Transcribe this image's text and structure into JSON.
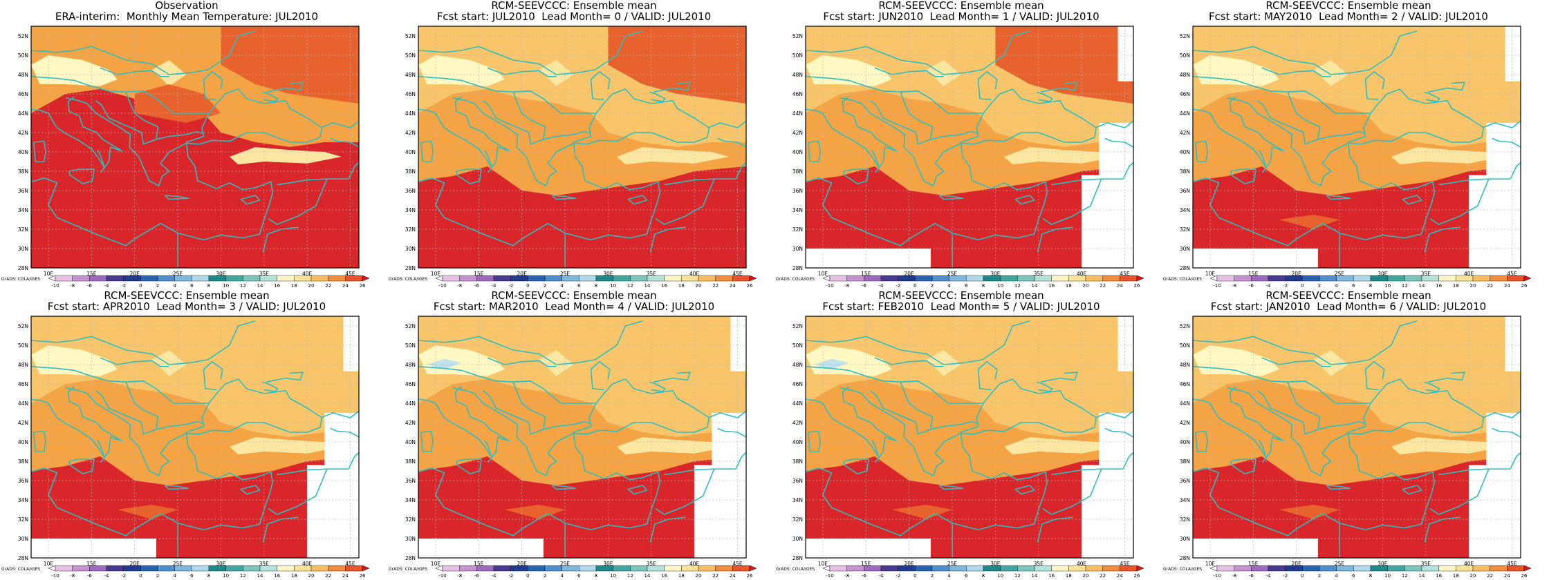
{
  "panels": [
    {
      "id": "obs",
      "title1": "Observation",
      "title2": "ERA-interim:  Monthly Mean Temperature: JUL2010",
      "missing": [],
      "cool": false
    },
    {
      "id": "lead0",
      "title1": "RCM-SEEVCCC: Ensemble mean",
      "title2": "Fcst start: JUL2010  Lead Month= 0 / VALID: JUL2010",
      "missing": [],
      "cool": false
    },
    {
      "id": "lead1",
      "title1": "RCM-SEEVCCC: Ensemble mean",
      "title2": "Fcst start: JUN2010  Lead Month= 1 / VALID: JUL2010",
      "missing": [
        "east",
        "south"
      ],
      "cool": false
    },
    {
      "id": "lead2",
      "title1": "RCM-SEEVCCC: Ensemble mean",
      "title2": "Fcst start: MAY2010  Lead Month= 2 / VALID: JUL2010",
      "missing": [
        "east",
        "south"
      ],
      "cool": false
    },
    {
      "id": "lead3",
      "title1": "RCM-SEEVCCC: Ensemble mean",
      "title2": "Fcst start: APR2010  Lead Month= 3 / VALID: JUL2010",
      "missing": [
        "east",
        "south"
      ],
      "cool": false
    },
    {
      "id": "lead4",
      "title1": "RCM-SEEVCCC: Ensemble mean",
      "title2": "Fcst start: MAR2010  Lead Month= 4 / VALID: JUL2010",
      "missing": [
        "east",
        "south"
      ],
      "cool": true
    },
    {
      "id": "lead5",
      "title1": "RCM-SEEVCCC: Ensemble mean",
      "title2": "Fcst start: FEB2010  Lead Month= 5 / VALID: JUL2010",
      "missing": [
        "east",
        "south"
      ],
      "cool": true
    },
    {
      "id": "lead6",
      "title1": "RCM-SEEVCCC: Ensemble mean",
      "title2": "Fcst start: JAN2010  Lead Month= 6 / VALID: JUL2010",
      "missing": [
        "east",
        "south"
      ],
      "cool": false
    }
  ],
  "lat_labels": [
    "52N",
    "50N",
    "48N",
    "46N",
    "44N",
    "42N",
    "40N",
    "38N",
    "36N",
    "34N",
    "32N",
    "30N",
    "28N"
  ],
  "lon_labels": [
    "10E",
    "15E",
    "20E",
    "25E",
    "30E",
    "35E",
    "40E",
    "45E"
  ],
  "colorbar": {
    "label": "GrADS: COLA/IGES",
    "ticks": [
      "-10",
      "-8",
      "-6",
      "-4",
      "-2",
      "0",
      "2",
      "4",
      "6",
      "8",
      "10",
      "12",
      "14",
      "16",
      "18",
      "20",
      "22",
      "24",
      "26"
    ],
    "colors": [
      "#f7f7f7",
      "#e6c3e6",
      "#c792d0",
      "#9d6bbd",
      "#4a3a8f",
      "#213a8e",
      "#2a63ae",
      "#4f8fcc",
      "#7fb7dd",
      "#b0d8ea",
      "#1f8a8a",
      "#44a6a0",
      "#7dc4bd",
      "#b6e3d9",
      "#fff6c8",
      "#fbe39a",
      "#f7bd60",
      "#f28c3f",
      "#e8562e",
      "#d7191c"
    ]
  },
  "field_colors": {
    "c16": "#fff8c2",
    "c18": "#fbe6a2",
    "c20": "#f9c56b",
    "c22": "#f4a345",
    "c24": "#e8622d",
    "c26": "#d9262a",
    "cool": "#bfe3ea"
  },
  "coast_color": "#2bbfc0"
}
